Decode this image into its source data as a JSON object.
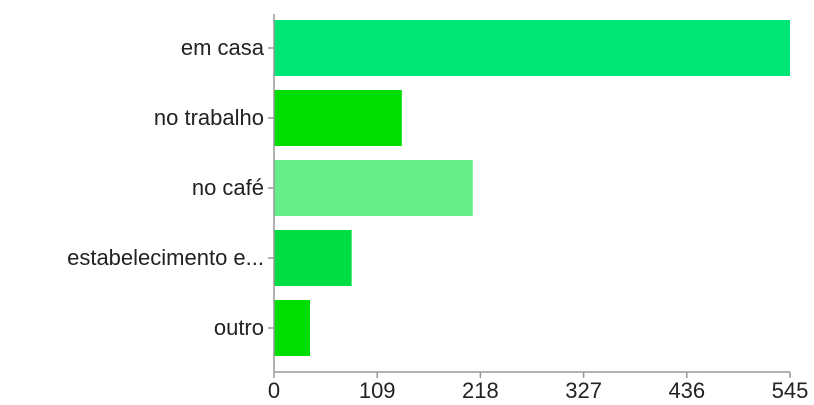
{
  "chart_data": {
    "type": "bar",
    "orientation": "horizontal",
    "categories": [
      "em casa",
      "no trabalho",
      "no café",
      "estabelecimento e...",
      "outro"
    ],
    "values": [
      545,
      135,
      210,
      82,
      38
    ],
    "colors": [
      "#00e676",
      "#00dd00",
      "#66ee88",
      "#00dd44",
      "#00dd00"
    ],
    "xlim": [
      0,
      545
    ],
    "x_ticks": [
      "0",
      "109",
      "218",
      "327",
      "436",
      "545"
    ],
    "grid": false,
    "title": "",
    "xlabel": "",
    "ylabel": ""
  }
}
